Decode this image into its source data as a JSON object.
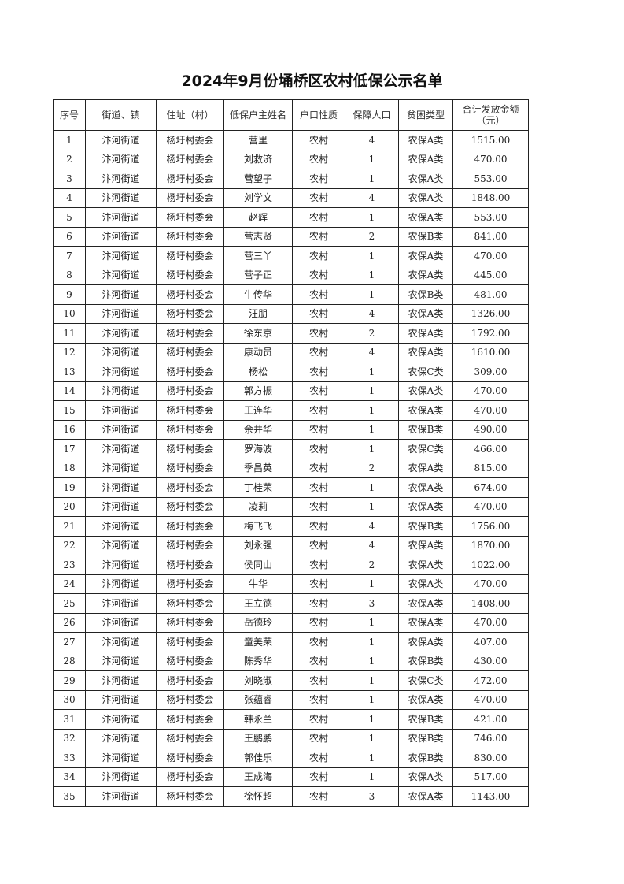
{
  "title": "2024年9月份埇桥区农村低保公示名单",
  "columns": [
    "序号",
    "街道、镇",
    "住址（村）",
    "低保户主姓名",
    "户口性质",
    "保障人口",
    "贫困类型",
    "合计发放金额（元）"
  ],
  "rows": [
    [
      "1",
      "汴河街道",
      "杨圩村委会",
      "营里",
      "农村",
      "4",
      "农保A类",
      "1515.00"
    ],
    [
      "2",
      "汴河街道",
      "杨圩村委会",
      "刘救济",
      "农村",
      "1",
      "农保A类",
      "470.00"
    ],
    [
      "3",
      "汴河街道",
      "杨圩村委会",
      "营望子",
      "农村",
      "1",
      "农保A类",
      "553.00"
    ],
    [
      "4",
      "汴河街道",
      "杨圩村委会",
      "刘学文",
      "农村",
      "4",
      "农保A类",
      "1848.00"
    ],
    [
      "5",
      "汴河街道",
      "杨圩村委会",
      "赵辉",
      "农村",
      "1",
      "农保A类",
      "553.00"
    ],
    [
      "6",
      "汴河街道",
      "杨圩村委会",
      "营志贤",
      "农村",
      "2",
      "农保B类",
      "841.00"
    ],
    [
      "7",
      "汴河街道",
      "杨圩村委会",
      "营三丫",
      "农村",
      "1",
      "农保A类",
      "470.00"
    ],
    [
      "8",
      "汴河街道",
      "杨圩村委会",
      "营子正",
      "农村",
      "1",
      "农保A类",
      "445.00"
    ],
    [
      "9",
      "汴河街道",
      "杨圩村委会",
      "牛传华",
      "农村",
      "1",
      "农保B类",
      "481.00"
    ],
    [
      "10",
      "汴河街道",
      "杨圩村委会",
      "汪朋",
      "农村",
      "4",
      "农保A类",
      "1326.00"
    ],
    [
      "11",
      "汴河街道",
      "杨圩村委会",
      "徐东京",
      "农村",
      "2",
      "农保A类",
      "1792.00"
    ],
    [
      "12",
      "汴河街道",
      "杨圩村委会",
      "康动员",
      "农村",
      "4",
      "农保A类",
      "1610.00"
    ],
    [
      "13",
      "汴河街道",
      "杨圩村委会",
      "杨松",
      "农村",
      "1",
      "农保C类",
      "309.00"
    ],
    [
      "14",
      "汴河街道",
      "杨圩村委会",
      "郭方振",
      "农村",
      "1",
      "农保A类",
      "470.00"
    ],
    [
      "15",
      "汴河街道",
      "杨圩村委会",
      "王连华",
      "农村",
      "1",
      "农保A类",
      "470.00"
    ],
    [
      "16",
      "汴河街道",
      "杨圩村委会",
      "余井华",
      "农村",
      "1",
      "农保B类",
      "490.00"
    ],
    [
      "17",
      "汴河街道",
      "杨圩村委会",
      "罗海波",
      "农村",
      "1",
      "农保C类",
      "466.00"
    ],
    [
      "18",
      "汴河街道",
      "杨圩村委会",
      "季昌英",
      "农村",
      "2",
      "农保A类",
      "815.00"
    ],
    [
      "19",
      "汴河街道",
      "杨圩村委会",
      "丁桂荣",
      "农村",
      "1",
      "农保A类",
      "674.00"
    ],
    [
      "20",
      "汴河街道",
      "杨圩村委会",
      "凌莉",
      "农村",
      "1",
      "农保A类",
      "470.00"
    ],
    [
      "21",
      "汴河街道",
      "杨圩村委会",
      "梅飞飞",
      "农村",
      "4",
      "农保B类",
      "1756.00"
    ],
    [
      "22",
      "汴河街道",
      "杨圩村委会",
      "刘永强",
      "农村",
      "4",
      "农保A类",
      "1870.00"
    ],
    [
      "23",
      "汴河街道",
      "杨圩村委会",
      "侯同山",
      "农村",
      "2",
      "农保A类",
      "1022.00"
    ],
    [
      "24",
      "汴河街道",
      "杨圩村委会",
      "牛华",
      "农村",
      "1",
      "农保A类",
      "470.00"
    ],
    [
      "25",
      "汴河街道",
      "杨圩村委会",
      "王立德",
      "农村",
      "3",
      "农保A类",
      "1408.00"
    ],
    [
      "26",
      "汴河街道",
      "杨圩村委会",
      "岳德玲",
      "农村",
      "1",
      "农保A类",
      "470.00"
    ],
    [
      "27",
      "汴河街道",
      "杨圩村委会",
      "童美荣",
      "农村",
      "1",
      "农保A类",
      "407.00"
    ],
    [
      "28",
      "汴河街道",
      "杨圩村委会",
      "陈秀华",
      "农村",
      "1",
      "农保B类",
      "430.00"
    ],
    [
      "29",
      "汴河街道",
      "杨圩村委会",
      "刘晓淑",
      "农村",
      "1",
      "农保C类",
      "472.00"
    ],
    [
      "30",
      "汴河街道",
      "杨圩村委会",
      "张蕴睿",
      "农村",
      "1",
      "农保A类",
      "470.00"
    ],
    [
      "31",
      "汴河街道",
      "杨圩村委会",
      "韩永兰",
      "农村",
      "1",
      "农保B类",
      "421.00"
    ],
    [
      "32",
      "汴河街道",
      "杨圩村委会",
      "王鹏鹏",
      "农村",
      "1",
      "农保B类",
      "746.00"
    ],
    [
      "33",
      "汴河街道",
      "杨圩村委会",
      "郭佳乐",
      "农村",
      "1",
      "农保B类",
      "830.00"
    ],
    [
      "34",
      "汴河街道",
      "杨圩村委会",
      "王成海",
      "农村",
      "1",
      "农保A类",
      "517.00"
    ],
    [
      "35",
      "汴河街道",
      "杨圩村委会",
      "徐怀超",
      "农村",
      "3",
      "农保A类",
      "1143.00"
    ]
  ]
}
